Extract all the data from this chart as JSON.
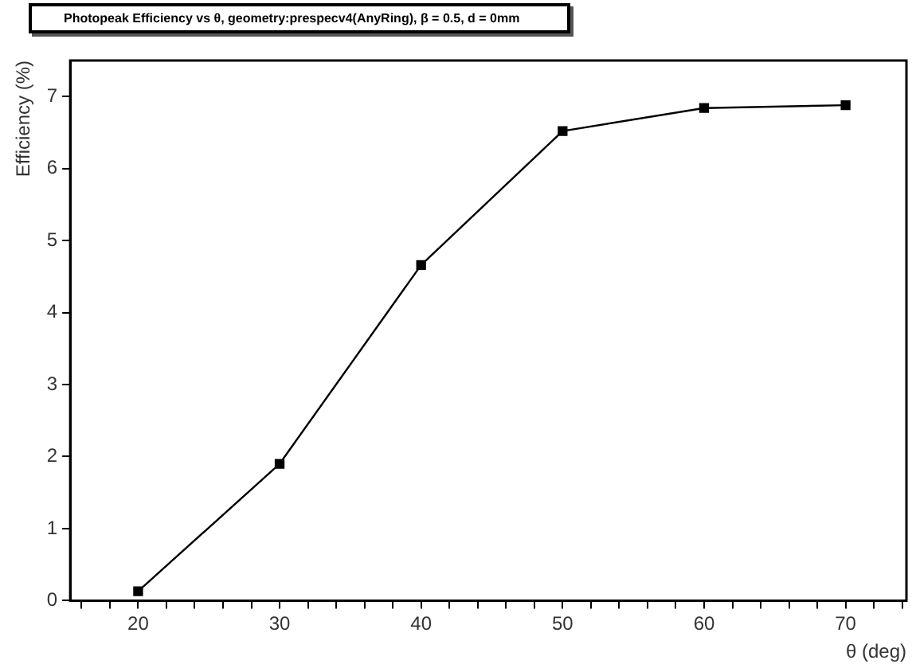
{
  "chart_data": {
    "type": "line",
    "title": "Photopeak Efficiency vs θ, geometry:prespecv4(AnyRing), β = 0.5, d = 0mm",
    "xlabel": "θ (deg)",
    "ylabel": "Efficiency (%)",
    "x": [
      20,
      30,
      40,
      50,
      60,
      70
    ],
    "series": [
      {
        "color": "#000000",
        "values": [
          0.13,
          1.9,
          4.66,
          6.52,
          6.84,
          6.88
        ]
      }
    ],
    "xlim": [
      15.2,
      74.3
    ],
    "ylim": [
      0,
      7.5
    ],
    "xticks": [
      {
        "value": 16,
        "label": null
      },
      {
        "value": 18,
        "label": null
      },
      20,
      {
        "value": 22,
        "label": null
      },
      {
        "value": 24,
        "label": null
      },
      {
        "value": 26,
        "label": null
      },
      {
        "value": 28,
        "label": null
      },
      30,
      {
        "value": 32,
        "label": null
      },
      {
        "value": 34,
        "label": null
      },
      {
        "value": 36,
        "label": null
      },
      {
        "value": 38,
        "label": null
      },
      40,
      {
        "value": 42,
        "label": null
      },
      {
        "value": 44,
        "label": null
      },
      {
        "value": 46,
        "label": null
      },
      {
        "value": 48,
        "label": null
      },
      50,
      {
        "value": 52,
        "label": null
      },
      {
        "value": 54,
        "label": null
      },
      {
        "value": 56,
        "label": null
      },
      {
        "value": 58,
        "label": null
      },
      60,
      {
        "value": 62,
        "label": null
      },
      {
        "value": 64,
        "label": null
      },
      {
        "value": 66,
        "label": null
      },
      {
        "value": 68,
        "label": null
      },
      70,
      {
        "value": 72,
        "label": null
      },
      {
        "value": 74,
        "label": null
      }
    ],
    "yticks": [
      0,
      1,
      2,
      3,
      4,
      5,
      6,
      7
    ],
    "grid": false,
    "legend": false,
    "marker": "square",
    "line_style": "solid"
  }
}
